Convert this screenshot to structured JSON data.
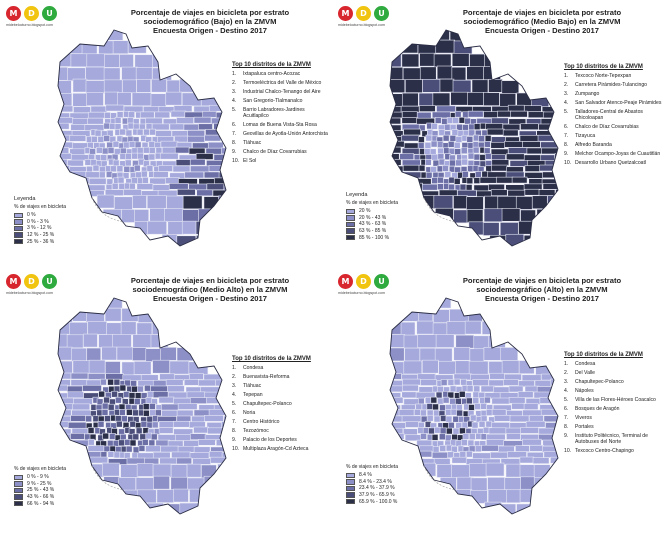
{
  "logo": {
    "letters": [
      "M",
      "D",
      "U"
    ],
    "url": "midebelocturno.blogspot.com"
  },
  "color_hex": {
    "logo": [
      "#d8262e",
      "#f1c40f",
      "#2eaa3e"
    ],
    "ramp": [
      "#a5a9dc",
      "#8c90c6",
      "#6c6fa6",
      "#4a4e78",
      "#2b2f48"
    ],
    "border": "#e6e7f5",
    "outline": "#2a2d44"
  },
  "panels": [
    {
      "title": [
        "Porcentaje de viajes en bicicleta por estrato",
        "sociodemográfico (Bajo) en la ZMVM",
        "Encuesta Origen - Destino 2017"
      ],
      "top10_title": "Top 10 distritos de la ZMVM",
      "top10": [
        "Ixtapaluca centro-Acozac",
        "Termoeléctrica del Valle de México",
        "Industrial Chalco-Tenango del Aire",
        "San Gregorio-Tlalmanalco",
        "Barrio Labradores-Jardines Acuitlapilco",
        "Lomas de Buena Vista-Sta Rosa",
        "Geovillas de Ayotla-Unión Antorchista",
        "Tláhuac",
        "Chalco de Díaz Covarrubias",
        "El Sol"
      ],
      "legend_title": "Leyenda",
      "legend_subtitle": "% de viajes en bicicleta",
      "legend": [
        "0 %",
        "0 % - 3 %",
        "3 % - 12 %",
        "12 % - 25 %",
        "25 % - 36 %"
      ],
      "shading": "low"
    },
    {
      "title": [
        "Porcentaje de viajes en bicicleta por estrato",
        "sociodemográfico (Medio Bajo) en la ZMVM",
        "Encuesta Origen - Destino 2017"
      ],
      "top10_title": "Top 10 distritos de la ZMVM",
      "top10": [
        "Texcoco Norte-Tepexpan",
        "Carretera Pirámides-Tulancingo",
        "Zumpango",
        "San Salvador Atenco-Peaje Pirámides",
        "Talladores-Central de Abastos Chicoloapan",
        "Chalco de Díaz Covarrubias",
        "Tizayuca",
        "Alfredo Baranda",
        "Melchor Ocampo-Joyas de Cuautitlán",
        "Desarrollo Urbano Quetzalcoatl"
      ],
      "legend_title": "Leyenda",
      "legend_subtitle": "% de viajes en bicicleta",
      "legend": [
        "20 %",
        "20 % - 43 %",
        "43 % - 63 %",
        "63 % - 85 %",
        "85 % - 100 %"
      ],
      "shading": "dark"
    },
    {
      "title": [
        "Porcentaje de viajes en bicicleta por estrato",
        "sociodemográfico (Medio Alto) en la ZMVM",
        "Encuesta Origen - Destino 2017"
      ],
      "top10_title": "Top 10 distritos de la ZMVM",
      "top10": [
        "Condesa",
        "Buenavista-Reforma",
        "Tláhuac",
        "Tepepan",
        "Chapultepec-Polanco",
        "Noria",
        "Centro Histórico",
        "Tezozómoc",
        "Palacio de los Deportes",
        "Multiplaza Aragón-Cd Azteca"
      ],
      "legend_title": "",
      "legend_subtitle": "% de viajes en bicicleta",
      "legend": [
        "0 % - 9 %",
        "9 % - 25 %",
        "25 % - 43 %",
        "43 % - 66 %",
        "66 % - 94 %"
      ],
      "shading": "center"
    },
    {
      "title": [
        "Porcentaje de viajes en bicicleta por estrato",
        "sociodemográfico (Alto) en la ZMVM",
        "Encuesta Origen - Destino 2017"
      ],
      "top10_title": "Top 10 distritos de la ZMVM",
      "top10": [
        "Condesa",
        "Del Valle",
        "Chapultepec-Polanco",
        "Nápoles",
        "Villa de las Flores-Héroes Coacalco",
        "Bosques de Aragón",
        "Viveros",
        "Portales",
        "Instituto Politécnico, Terminal de Autobuses del Norte",
        "Texcoco Centro-Chapingo"
      ],
      "legend_title": "",
      "legend_subtitle": "% de viajes en bicicleta",
      "legend": [
        "8.4 %",
        "8.4 % - 23.4 %",
        "23.4 % - 37.9 %",
        "37.9 % - 65.9 %",
        "65.9 % - 100.0 %"
      ],
      "shading": "sparse"
    }
  ]
}
